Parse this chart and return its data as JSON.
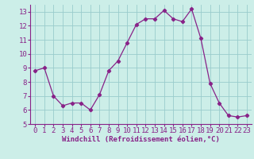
{
  "x": [
    0,
    1,
    2,
    3,
    4,
    5,
    6,
    7,
    8,
    9,
    10,
    11,
    12,
    13,
    14,
    15,
    16,
    17,
    18,
    19,
    20,
    21,
    22,
    23
  ],
  "y": [
    8.8,
    9.0,
    7.0,
    6.3,
    6.5,
    6.5,
    6.0,
    7.1,
    8.8,
    9.5,
    10.8,
    12.1,
    12.5,
    12.5,
    13.1,
    12.5,
    12.3,
    13.2,
    11.1,
    7.9,
    6.5,
    5.6,
    5.5,
    5.6
  ],
  "line_color": "#882288",
  "marker": "D",
  "marker_size": 2.2,
  "xlabel": "Windchill (Refroidissement éolien,°C)",
  "ylim": [
    5,
    13.5
  ],
  "xlim": [
    -0.5,
    23.5
  ],
  "yticks": [
    5,
    6,
    7,
    8,
    9,
    10,
    11,
    12,
    13
  ],
  "xticks": [
    0,
    1,
    2,
    3,
    4,
    5,
    6,
    7,
    8,
    9,
    10,
    11,
    12,
    13,
    14,
    15,
    16,
    17,
    18,
    19,
    20,
    21,
    22,
    23
  ],
  "grid_color": "#99cccc",
  "bg_color": "#cceee8",
  "xlabel_fontsize": 6.5,
  "tick_fontsize": 6.5,
  "linewidth": 0.9
}
